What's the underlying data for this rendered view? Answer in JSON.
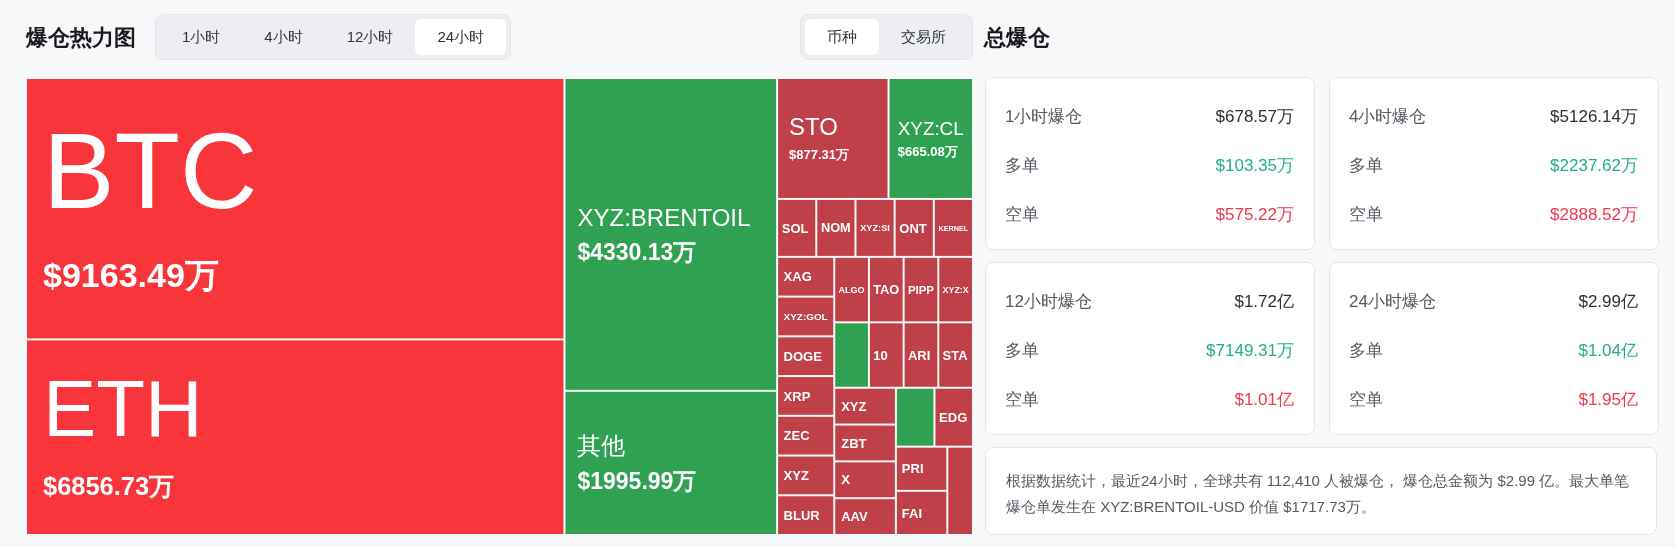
{
  "chart_data": [
    {
      "type": "other",
      "title": "爆仓热力图",
      "categories": [
        "BTC",
        "ETH",
        "XYZ:BRENTOIL",
        "其他",
        "STO",
        "XYZ:CL",
        "SOL",
        "NOM",
        "XYZ:SI",
        "ONT",
        "KERNEL",
        "XAG",
        "XYZ:GOL",
        "DOGE",
        "XRP",
        "ZEC",
        "XYZ",
        "BLUR",
        "ALGO",
        "TAO",
        "PIPP",
        "XYZ:X",
        null,
        "10",
        "ARI",
        "STA",
        "XYZ",
        "ZBT",
        "X",
        "AAV",
        null,
        "EDG",
        "PRI",
        "FAI",
        null
      ],
      "values": [
        9163.49,
        6856.73,
        4330.13,
        1995.99,
        877.31,
        665.08,
        null,
        null,
        null,
        null,
        null,
        null,
        null,
        null,
        null,
        null,
        null,
        null,
        null,
        null,
        null,
        null,
        null,
        null,
        null,
        null,
        null,
        null,
        null,
        null,
        null,
        null,
        null,
        null,
        null
      ],
      "value_labels": [
        "$9163.49万",
        "$6856.73万",
        "$4330.13万",
        "$1995.99万",
        "$877.31万",
        "$665.08万",
        null,
        null,
        null,
        null,
        null,
        null,
        null,
        null,
        null,
        null,
        null,
        null,
        null,
        null,
        null,
        null,
        null,
        null,
        null,
        null,
        null,
        null,
        null,
        null,
        null,
        null,
        null,
        null,
        null
      ],
      "colors": [
        "#f7353b",
        "#f7353b",
        "#30a052",
        "#30a052",
        "#bf4048",
        "#30a052",
        "#bf4048",
        "#bf4048",
        "#bf4048",
        "#bf4048",
        "#bf4048",
        "#bf4048",
        "#bf4048",
        "#bf4048",
        "#bf4048",
        "#bf4048",
        "#bf4048",
        "#bf4048",
        "#bf4048",
        "#bf4048",
        "#bf4048",
        "#bf4048",
        "#30a052",
        "#bf4048",
        "#bf4048",
        "#bf4048",
        "#bf4048",
        "#bf4048",
        "#bf4048",
        "#bf4048",
        "#30a052",
        "#bf4048",
        "#bf4048",
        "#bf4048",
        "#bf4048"
      ],
      "annotations": [
        "1小时",
        "4小时",
        "12小时",
        "24小时",
        "币种",
        "交易所"
      ]
    },
    {
      "type": "other",
      "title": "总爆仓",
      "annotations": [
        "1小时爆仓",
        "$678.57万",
        "多单",
        "$103.35万",
        "空单",
        "$575.22万",
        "4小时爆仓",
        "$5126.14万",
        "多单",
        "$2237.62万",
        "空单",
        "$2888.52万",
        "12小时爆仓",
        "$1.72亿",
        "多单",
        "$7149.31万",
        "空单",
        "$1.01亿",
        "24小时爆仓",
        "$2.99亿",
        "多单",
        "$1.04亿",
        "空单",
        "$1.95亿",
        "根据数据统计，最近24小时，全球共有 112,410 人被爆仓， 爆仓总金额为 $2.99 亿。最大单笔爆仓单发生在 XYZ:BRENTOIL-USD 价值 $1717.73万。"
      ]
    }
  ]
}
